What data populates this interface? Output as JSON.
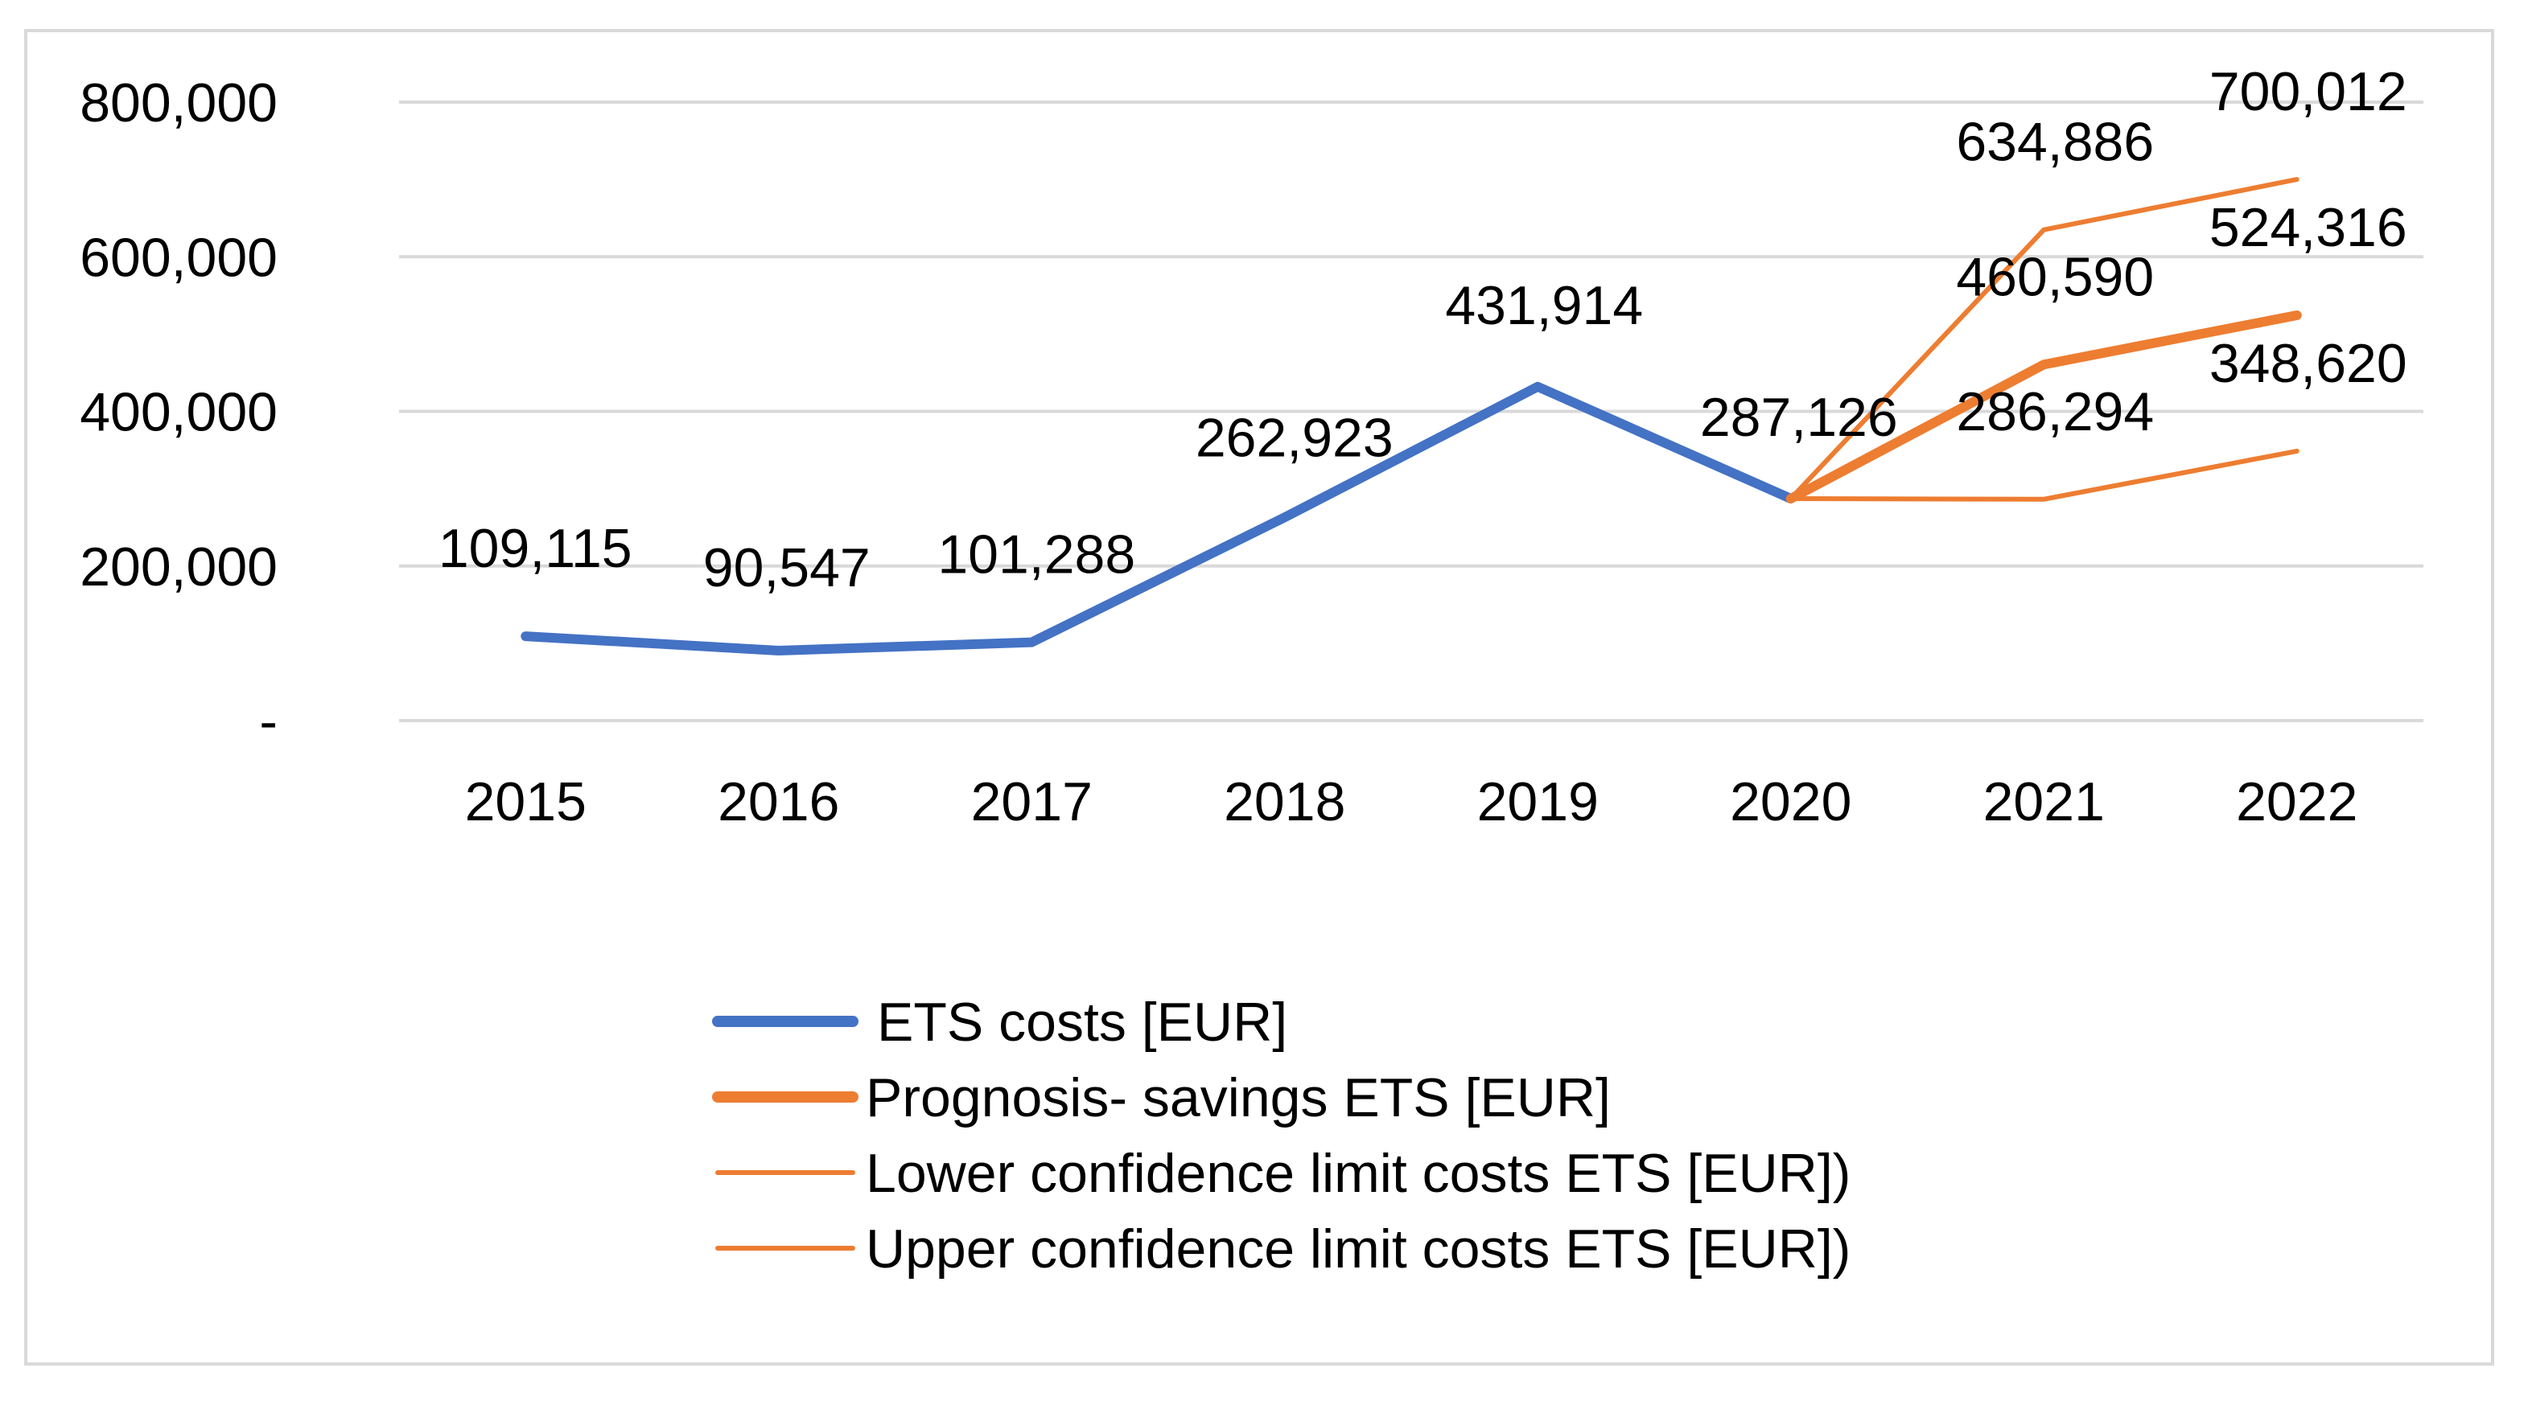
{
  "chart_data": {
    "type": "line",
    "title": "",
    "xlabel": "",
    "ylabel": "",
    "categories": [
      "2015",
      "2016",
      "2017",
      "2018",
      "2019",
      "2020",
      "2021",
      "2022"
    ],
    "ylim": [
      0,
      800000
    ],
    "yticks": [
      0,
      200000,
      400000,
      600000,
      800000
    ],
    "ytick_labels": [
      "-",
      "200,000",
      "400,000",
      "600,000",
      "800,000"
    ],
    "grid": true,
    "legend_position": "bottom",
    "series": [
      {
        "name": "ETS costs [EUR]",
        "color": "#4472c4",
        "style": "thick",
        "values": [
          109115,
          90547,
          101288,
          262923,
          431914,
          287126,
          null,
          null
        ],
        "labels": [
          "109,115",
          "90,547",
          "101,288",
          "262,923",
          "431,914",
          "287,126",
          "",
          ""
        ]
      },
      {
        "name": "Prognosis- savings  ETS [EUR]",
        "color": "#ed7d31",
        "style": "thick",
        "values": [
          null,
          null,
          null,
          null,
          null,
          287126,
          460590,
          524316
        ],
        "labels": [
          "",
          "",
          "",
          "",
          "",
          "",
          "460,590",
          "524,316"
        ]
      },
      {
        "name": "Lower confidence limit costs ETS [EUR])",
        "color": "#ed7d31",
        "style": "thin",
        "values": [
          null,
          null,
          null,
          null,
          null,
          287126,
          286294,
          348620
        ],
        "labels": [
          "",
          "",
          "",
          "",
          "",
          "",
          "286,294",
          "348,620"
        ]
      },
      {
        "name": "Upper confidence limit costs ETS [EUR])",
        "color": "#ed7d31",
        "style": "thin",
        "values": [
          null,
          null,
          null,
          null,
          null,
          287126,
          634886,
          700012
        ],
        "labels": [
          "",
          "",
          "",
          "",
          "",
          "",
          "634,886",
          "700,012"
        ]
      }
    ]
  }
}
